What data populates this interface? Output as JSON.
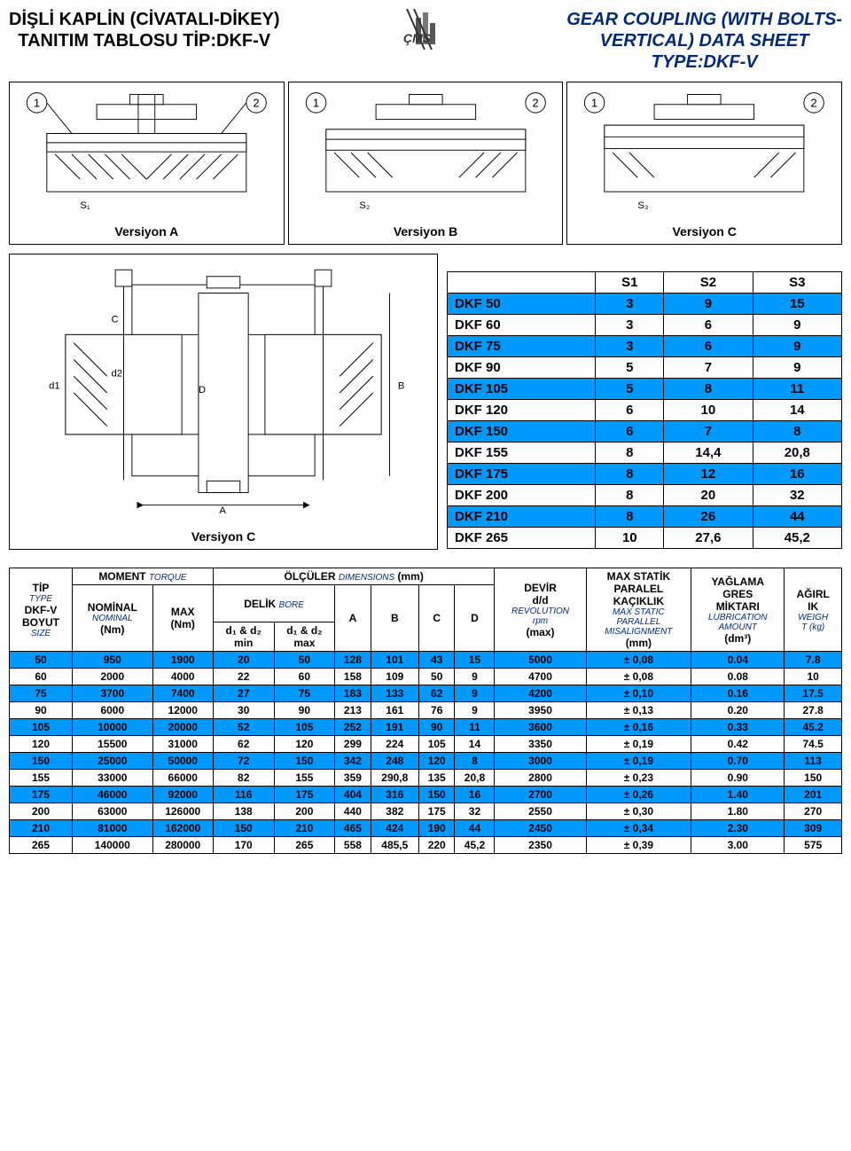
{
  "header": {
    "left_line1": "DİŞLİ KAPLİN (CİVATALI-DİKEY)",
    "left_line2": "TANITIM TABLOSU TİP:DKF-V",
    "right_line1": "GEAR COUPLING (WITH BOLTS-",
    "right_line2": "VERTICAL)   DATA SHEET",
    "right_line3": "TYPE:DKF-V",
    "logo_text": "ÇMS",
    "logo_color": "#666666"
  },
  "versions": {
    "a": "Versiyon A",
    "b": "Versiyon B",
    "c": "Versiyon C",
    "big_label": "Versiyon C",
    "callouts": {
      "one": "1",
      "two": "2"
    },
    "dims": {
      "s1": "S₁",
      "s2": "S₂",
      "s3": "S₃",
      "A": "A",
      "B": "B",
      "C": "C",
      "D": "D",
      "d1": "d1",
      "d2": "d2"
    }
  },
  "s_table": {
    "headers": [
      "S1",
      "S2",
      "S3"
    ],
    "rows": [
      {
        "label": "DKF 50",
        "v": [
          "3",
          "9",
          "15"
        ]
      },
      {
        "label": "DKF 60",
        "v": [
          "3",
          "6",
          "9"
        ]
      },
      {
        "label": "DKF 75",
        "v": [
          "3",
          "6",
          "9"
        ]
      },
      {
        "label": "DKF 90",
        "v": [
          "5",
          "7",
          "9"
        ]
      },
      {
        "label": "DKF 105",
        "v": [
          "5",
          "8",
          "11"
        ]
      },
      {
        "label": "DKF 120",
        "v": [
          "6",
          "10",
          "14"
        ]
      },
      {
        "label": "DKF 150",
        "v": [
          "6",
          "7",
          "8"
        ]
      },
      {
        "label": "DKF 155",
        "v": [
          "8",
          "14,4",
          "20,8"
        ]
      },
      {
        "label": "DKF 175",
        "v": [
          "8",
          "12",
          "16"
        ]
      },
      {
        "label": "DKF 200",
        "v": [
          "8",
          "20",
          "32"
        ]
      },
      {
        "label": "DKF 210",
        "v": [
          "8",
          "26",
          "44"
        ]
      },
      {
        "label": "DKF 265",
        "v": [
          "10",
          "27,6",
          "45,2"
        ]
      }
    ]
  },
  "main_headers": {
    "tip": "TİP",
    "tip_en": "TYPE",
    "dkfv": "DKF-V",
    "boyut": "BOYUT",
    "boyut_en": "SIZE",
    "moment": "MOMENT",
    "moment_en": "TORQUE",
    "nom": "NOMİNAL",
    "nom_sub": "NOMINAL",
    "nom_unit": "(Nm)",
    "max": "MAX",
    "max_unit": "(Nm)",
    "olculer": "ÖLÇÜLER",
    "olculer_en": "DIMENSIONS",
    "olculer_unit": "(mm)",
    "delik": "DELİK",
    "delik_en": "BORE",
    "d12min_top": "d₁ & d₂",
    "d12min_bot": "min",
    "d12max_top": "d₁ & d₂",
    "d12max_bot": "max",
    "A": "A",
    "B": "B",
    "C": "C",
    "D": "D",
    "devir": "DEVİR",
    "dd": "d/d",
    "rev": "REVOLUTION",
    "rpm": "rpm",
    "rpm_max": "(max)",
    "mstat": "MAX STATİK",
    "paralel": "PARALEL",
    "kaciklik": "KAÇIKLIK",
    "mstat_en1": "MAX STATIC",
    "mstat_en2": "PARALLEL",
    "mstat_en3": "MISALIGNMENT",
    "mm": "(mm)",
    "yag": "YAĞLAMA",
    "gres": "GRES",
    "mikt": "MİKTARI",
    "lub1": "LUBRICATION",
    "lub2": "AMOUNT",
    "dm3": "(dm³)",
    "agirl": "AĞIRL",
    "ik": "IK",
    "weigh": "WEIGH",
    "tkg": "T (kg)"
  },
  "main_rows": [
    [
      "50",
      "950",
      "1900",
      "20",
      "50",
      "128",
      "101",
      "43",
      "15",
      "5000",
      "± 0,08",
      "0.04",
      "7.8"
    ],
    [
      "60",
      "2000",
      "4000",
      "22",
      "60",
      "158",
      "109",
      "50",
      "9",
      "4700",
      "± 0,08",
      "0.08",
      "10"
    ],
    [
      "75",
      "3700",
      "7400",
      "27",
      "75",
      "183",
      "133",
      "62",
      "9",
      "4200",
      "± 0,10",
      "0.16",
      "17.5"
    ],
    [
      "90",
      "6000",
      "12000",
      "30",
      "90",
      "213",
      "161",
      "76",
      "9",
      "3950",
      "± 0,13",
      "0.20",
      "27.8"
    ],
    [
      "105",
      "10000",
      "20000",
      "52",
      "105",
      "252",
      "191",
      "90",
      "11",
      "3600",
      "± 0,16",
      "0.33",
      "45.2"
    ],
    [
      "120",
      "15500",
      "31000",
      "62",
      "120",
      "299",
      "224",
      "105",
      "14",
      "3350",
      "± 0,19",
      "0.42",
      "74.5"
    ],
    [
      "150",
      "25000",
      "50000",
      "72",
      "150",
      "342",
      "248",
      "120",
      "8",
      "3000",
      "± 0,19",
      "0.70",
      "113"
    ],
    [
      "155",
      "33000",
      "66000",
      "82",
      "155",
      "359",
      "290,8",
      "135",
      "20,8",
      "2800",
      "± 0,23",
      "0.90",
      "150"
    ],
    [
      "175",
      "46000",
      "92000",
      "116",
      "175",
      "404",
      "316",
      "150",
      "16",
      "2700",
      "± 0,26",
      "1.40",
      "201"
    ],
    [
      "200",
      "63000",
      "126000",
      "138",
      "200",
      "440",
      "382",
      "175",
      "32",
      "2550",
      "± 0,30",
      "1.80",
      "270"
    ],
    [
      "210",
      "81000",
      "162000",
      "150",
      "210",
      "465",
      "424",
      "190",
      "44",
      "2450",
      "± 0,34",
      "2.30",
      "309"
    ],
    [
      "265",
      "140000",
      "280000",
      "170",
      "265",
      "558",
      "485,5",
      "220",
      "45,2",
      "2350",
      "± 0,39",
      "3.00",
      "575"
    ]
  ],
  "colors": {
    "blue_row": "#0099ff",
    "white_row": "#ffffff",
    "navy": "#002b7d"
  }
}
